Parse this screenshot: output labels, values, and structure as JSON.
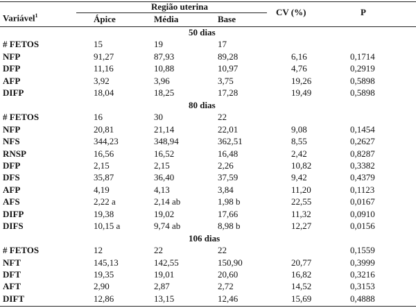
{
  "header": {
    "variable": "Variável",
    "variable_note": "1",
    "region": "Região uterina",
    "columns": [
      "Ápice",
      "Média",
      "Base"
    ],
    "cv": "CV (%)",
    "p": "P"
  },
  "sections": [
    {
      "title": "50 dias",
      "rows": [
        {
          "label": "# FETOS",
          "values": [
            "15",
            "19",
            "17"
          ]
        },
        {
          "label": "NFP",
          "values": [
            "91,27",
            "87,93",
            "89,28"
          ],
          "cv": "6,16",
          "p": "0,1714"
        },
        {
          "label": "DFP",
          "values": [
            "11,16",
            "10,88",
            "10,97"
          ],
          "cv": "4,76",
          "p": "0,2919"
        },
        {
          "label": "AFP",
          "values": [
            "3,92",
            "3,96",
            "3,75"
          ],
          "cv": "19,26",
          "p": "0,5898"
        },
        {
          "label": "DIFP",
          "values": [
            "18,04",
            "18,25",
            "17,28"
          ],
          "cv": "19,49",
          "p": "0,5898"
        }
      ]
    },
    {
      "title": "80 dias",
      "rows": [
        {
          "label": "# FETOS",
          "values": [
            "16",
            "30",
            "22"
          ]
        },
        {
          "label": "NFP",
          "values": [
            "20,81",
            "21,14",
            "22,01"
          ],
          "cv": "9,08",
          "p": "0,1454"
        },
        {
          "label": "NFS",
          "values": [
            "344,23",
            "348,94",
            "362,51"
          ],
          "cv": "8,55",
          "p": "0,2627"
        },
        {
          "label": "RNSP",
          "values": [
            "16,56",
            "16,52",
            "16,48"
          ],
          "cv": "2,42",
          "p": "0,8287"
        },
        {
          "label": "DFP",
          "values": [
            "2,15",
            "2,15",
            "2,26"
          ],
          "cv": "10,82",
          "p": "0,3382"
        },
        {
          "label": "DFS",
          "values": [
            "35,87",
            "36,40",
            "37,59"
          ],
          "cv": "9,42",
          "p": "0,4379"
        },
        {
          "label": "AFP",
          "values": [
            "4,19",
            "4,13",
            "3,84"
          ],
          "cv": "11,20",
          "p": "0,1123"
        },
        {
          "label": "AFS",
          "values": [
            "2,22 a",
            "2,14 ab",
            "1,98 b"
          ],
          "cv": "22,55",
          "p": "0,0167"
        },
        {
          "label": "DIFP",
          "values": [
            "19,38",
            "19,02",
            "17,66"
          ],
          "cv": "11,32",
          "p": "0,0910"
        },
        {
          "label": "DIFS",
          "values": [
            "10,15 a",
            "9,74 ab",
            "8,98 b"
          ],
          "cv": "12,27",
          "p": "0,0156"
        }
      ]
    },
    {
      "title": "106 dias",
      "rows": [
        {
          "label": "# FETOS",
          "values": [
            "12",
            "22",
            "22"
          ],
          "p": "0,1559"
        },
        {
          "label": "NFT",
          "values": [
            "145,13",
            "142,55",
            "150,90"
          ],
          "cv": "20,77",
          "p": "0,3999"
        },
        {
          "label": "DFT",
          "values": [
            "19,35",
            "19,01",
            "20,60"
          ],
          "cv": "16,82",
          "p": "0,3216"
        },
        {
          "label": "AFT",
          "values": [
            "2,90",
            "2,87",
            "2,72"
          ],
          "cv": "14,52",
          "p": "0,3153"
        },
        {
          "label": "DIFT",
          "values": [
            "12,86",
            "13,15",
            "12,46"
          ],
          "cv": "15,69",
          "p": "0,4888"
        }
      ]
    }
  ]
}
